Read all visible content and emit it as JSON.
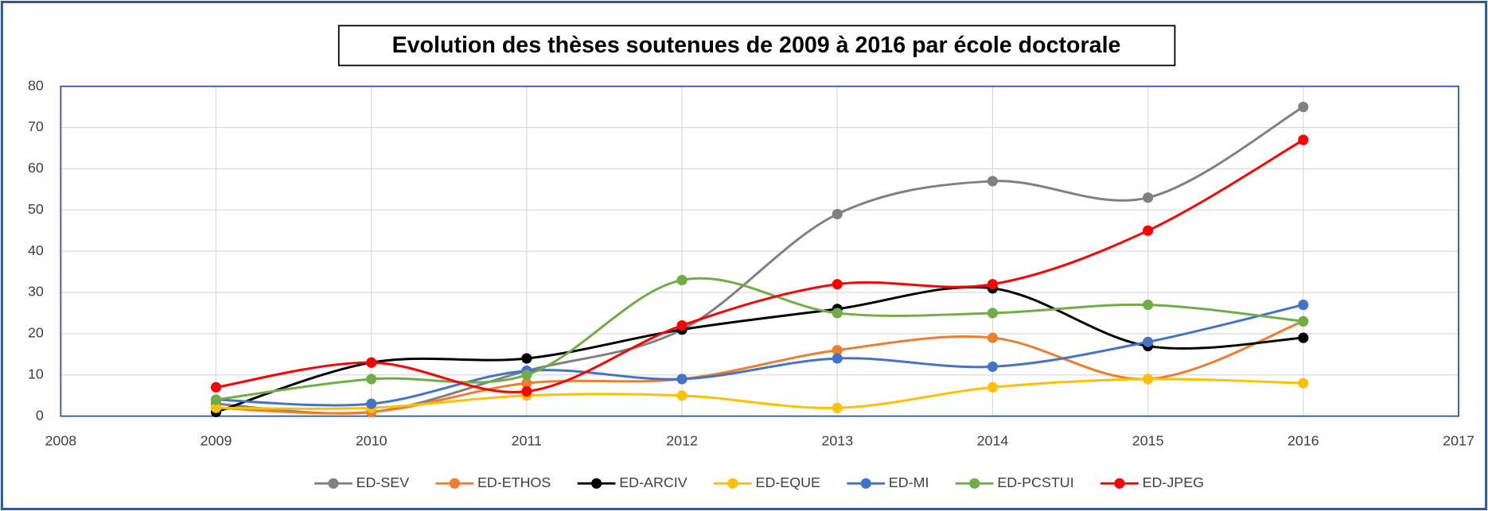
{
  "chart_data": {
    "type": "line",
    "title": "Evolution des thèses soutenues de 2009 à 2016 par école doctorale",
    "x": [
      2009,
      2010,
      2011,
      2012,
      2013,
      2014,
      2015,
      2016
    ],
    "xlim": [
      2008,
      2017
    ],
    "xticks": [
      2008,
      2009,
      2010,
      2011,
      2012,
      2013,
      2014,
      2015,
      2016,
      2017
    ],
    "ylim": [
      0,
      80
    ],
    "yticks": [
      0,
      10,
      20,
      30,
      40,
      50,
      60,
      70,
      80
    ],
    "grid": true,
    "smooth": true,
    "legend": "bottom",
    "series": [
      {
        "name": "ED-SEV",
        "color": "#808080",
        "values": [
          3,
          1,
          11,
          21,
          49,
          57,
          53,
          75
        ]
      },
      {
        "name": "ED-ETHOS",
        "color": "#ed7d31",
        "values": [
          2,
          1,
          8,
          9,
          16,
          19,
          9,
          23
        ]
      },
      {
        "name": "ED-ARCIV",
        "color": "#000000",
        "values": [
          1,
          13,
          14,
          21,
          26,
          31,
          17,
          19
        ]
      },
      {
        "name": "ED-EQUE",
        "color": "#ffc000",
        "values": [
          2,
          2,
          5,
          5,
          2,
          7,
          9,
          8
        ]
      },
      {
        "name": "ED-MI",
        "color": "#4472c4",
        "values": [
          4,
          3,
          11,
          9,
          14,
          12,
          18,
          27
        ]
      },
      {
        "name": "ED-PCSTUI",
        "color": "#70ad47",
        "values": [
          4,
          9,
          10,
          33,
          25,
          25,
          27,
          23
        ]
      },
      {
        "name": "ED-JPEG",
        "color": "#ff0000",
        "values": [
          7,
          13,
          6,
          22,
          32,
          32,
          45,
          67
        ]
      }
    ]
  }
}
